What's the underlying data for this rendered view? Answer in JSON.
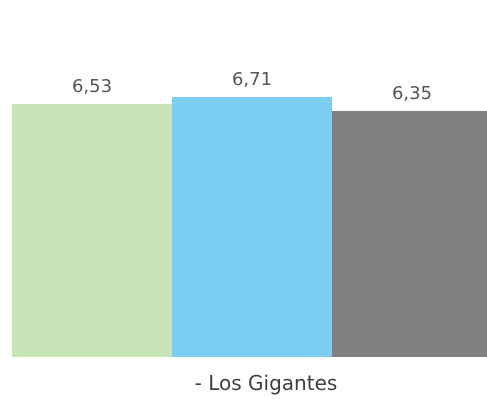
{
  "chart_data": {
    "type": "bar",
    "categories": [
      "- Los Gigantes"
    ],
    "series": [
      {
        "values": [
          6.53
        ],
        "color": "#c8e3b6"
      },
      {
        "values": [
          6.71
        ],
        "color": "#7dcef3"
      },
      {
        "values": [
          6.35
        ],
        "color": "#808080"
      }
    ],
    "data_labels": [
      "6,53",
      "6,71",
      "6,35"
    ],
    "ylim": [
      0,
      6.71
    ],
    "grid": false,
    "legend": "none"
  }
}
